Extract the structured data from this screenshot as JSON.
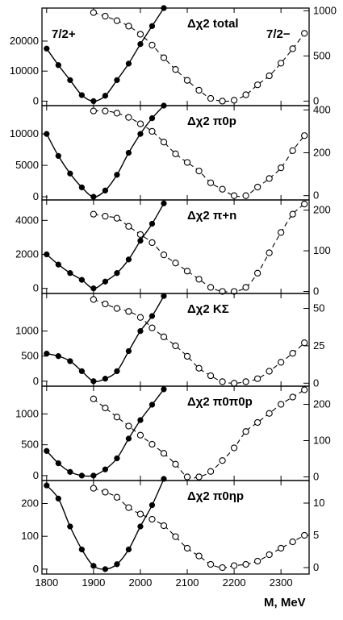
{
  "chart_data": {
    "type": "scatter",
    "shared_x_ticks": [
      1800,
      1900,
      2000,
      2100,
      2200,
      2300
    ],
    "xlim": [
      1790,
      2360
    ],
    "xlabel": "M, MeV",
    "corner_labels": {
      "left": "7/2+",
      "right": "7/2−"
    },
    "series_styles": {
      "left": "filled circles, solid fitted line, left axis",
      "right": "open circles, dashed fitted line, right axis"
    },
    "panels": [
      {
        "title": "Δχ2 total",
        "left_axis": {
          "ticks": [
            0,
            10000,
            20000
          ],
          "ylim": [
            -1500,
            31000
          ]
        },
        "right_axis": {
          "ticks": [
            0,
            500,
            1000
          ],
          "ylim": [
            -50,
            1030
          ]
        },
        "filled": {
          "x": [
            1800,
            1825,
            1850,
            1875,
            1900,
            1925,
            1950,
            1975,
            2000,
            2025,
            2050
          ],
          "y": [
            17500,
            12000,
            7000,
            2000,
            0,
            1800,
            7000,
            12500,
            19000,
            25000,
            31000
          ]
        },
        "open": {
          "x": [
            1900,
            1925,
            1950,
            1975,
            2000,
            2025,
            2050,
            2075,
            2100,
            2125,
            2150,
            2175,
            2200,
            2225,
            2250,
            2275,
            2300,
            2325,
            2350
          ],
          "y": [
            980,
            940,
            890,
            830,
            740,
            620,
            480,
            350,
            230,
            120,
            30,
            0,
            10,
            70,
            180,
            280,
            420,
            580,
            750
          ]
        }
      },
      {
        "title": "Δχ2 π0p",
        "left_axis": {
          "ticks": [
            0,
            5000,
            10000
          ],
          "ylim": [
            -500,
            14500
          ]
        },
        "right_axis": {
          "ticks": [
            0,
            200,
            400
          ],
          "ylim": [
            -20,
            420
          ]
        },
        "filled": {
          "x": [
            1800,
            1825,
            1850,
            1875,
            1900,
            1925,
            1950,
            1975,
            2000,
            2025,
            2050
          ],
          "y": [
            10000,
            6500,
            3700,
            1500,
            0,
            1000,
            3500,
            7000,
            10000,
            12500,
            14500
          ]
        },
        "open": {
          "x": [
            1900,
            1925,
            1950,
            1975,
            2000,
            2025,
            2050,
            2075,
            2100,
            2125,
            2150,
            2175,
            2200,
            2225,
            2250,
            2275,
            2300,
            2325,
            2350
          ],
          "y": [
            395,
            395,
            385,
            365,
            335,
            300,
            250,
            195,
            155,
            115,
            60,
            30,
            0,
            0,
            40,
            80,
            130,
            210,
            280
          ]
        }
      },
      {
        "title": "Δχ2 π+n",
        "left_axis": {
          "ticks": [
            0,
            2000,
            4000
          ],
          "ylim": [
            -300,
            5200
          ]
        },
        "right_axis": {
          "ticks": [
            0,
            100,
            200
          ],
          "ylim": [
            -5,
            225
          ]
        },
        "filled": {
          "x": [
            1800,
            1825,
            1850,
            1875,
            1900,
            1925,
            1950,
            1975,
            2000,
            2025,
            2050
          ],
          "y": [
            2000,
            1400,
            900,
            500,
            0,
            400,
            900,
            1700,
            2800,
            3800,
            5000
          ]
        },
        "open": {
          "x": [
            1900,
            1925,
            1950,
            1975,
            2000,
            2025,
            2050,
            2075,
            2100,
            2125,
            2150,
            2175,
            2200,
            2225,
            2250,
            2275,
            2300,
            2325,
            2350
          ],
          "y": [
            190,
            185,
            180,
            160,
            140,
            120,
            90,
            70,
            50,
            30,
            10,
            0,
            0,
            10,
            45,
            95,
            145,
            190,
            215
          ]
        }
      },
      {
        "title": "Δχ2 KΣ",
        "left_axis": {
          "ticks": [
            0,
            500,
            1000
          ],
          "ylim": [
            -100,
            1750
          ]
        },
        "right_axis": {
          "ticks": [
            0,
            25,
            50
          ],
          "ylim": [
            -2,
            60
          ]
        },
        "filled": {
          "x": [
            1800,
            1825,
            1850,
            1875,
            1900,
            1925,
            1950,
            1975,
            2000,
            2025,
            2050
          ],
          "y": [
            550,
            500,
            400,
            200,
            0,
            50,
            200,
            600,
            1000,
            1300,
            1700
          ]
        },
        "open": {
          "x": [
            1900,
            1925,
            1950,
            1975,
            2000,
            2025,
            2050,
            2075,
            2100,
            2125,
            2150,
            2175,
            2200,
            2225,
            2250,
            2275,
            2300,
            2325,
            2350
          ],
          "y": [
            56,
            53,
            50,
            48,
            44,
            37,
            31,
            25,
            18,
            10,
            5,
            1,
            0,
            1,
            3,
            8,
            14,
            20,
            27
          ]
        }
      },
      {
        "title": "Δχ2 π0π0p",
        "left_axis": {
          "ticks": [
            0,
            500,
            1000
          ],
          "ylim": [
            -80,
            1450
          ]
        },
        "right_axis": {
          "ticks": [
            0,
            100,
            200
          ],
          "ylim": [
            -10,
            250
          ]
        },
        "filled": {
          "x": [
            1800,
            1825,
            1850,
            1875,
            1900,
            1925,
            1950,
            1975,
            2000,
            2025,
            2050
          ],
          "y": [
            400,
            200,
            60,
            0,
            0,
            100,
            280,
            600,
            900,
            1150,
            1400
          ]
        },
        "open": {
          "x": [
            1900,
            1925,
            1950,
            1975,
            2000,
            2025,
            2050,
            2075,
            2100,
            2125,
            2150,
            2175,
            2200,
            2225,
            2250,
            2275,
            2300,
            2325,
            2350
          ],
          "y": [
            215,
            190,
            165,
            140,
            115,
            90,
            65,
            35,
            0,
            0,
            15,
            45,
            80,
            125,
            150,
            175,
            200,
            220,
            240
          ]
        }
      },
      {
        "title": "Δχ2 π0ηp",
        "left_axis": {
          "ticks": [
            0,
            100,
            200
          ],
          "ylim": [
            -15,
            270
          ]
        },
        "right_axis": {
          "ticks": [
            0,
            5,
            10
          ],
          "ylim": [
            -1,
            13.5
          ]
        },
        "filled": {
          "x": [
            1800,
            1825,
            1850,
            1875,
            1900,
            1925,
            1950,
            1975,
            2000,
            2025,
            2050
          ],
          "y": [
            255,
            215,
            130,
            60,
            10,
            0,
            15,
            60,
            130,
            195,
            275
          ]
        },
        "open": {
          "x": [
            1900,
            1925,
            1950,
            1975,
            2000,
            2025,
            2050,
            2075,
            2100,
            2125,
            2150,
            2175,
            2200,
            2225,
            2250,
            2275,
            2300,
            2325,
            2350
          ],
          "y": [
            12.3,
            11.7,
            10.9,
            9.3,
            8.3,
            7.5,
            6.5,
            4.8,
            3.0,
            1.8,
            0.5,
            0,
            0.3,
            0.5,
            1.0,
            2.0,
            3.0,
            4.0,
            5.0
          ]
        }
      }
    ]
  }
}
